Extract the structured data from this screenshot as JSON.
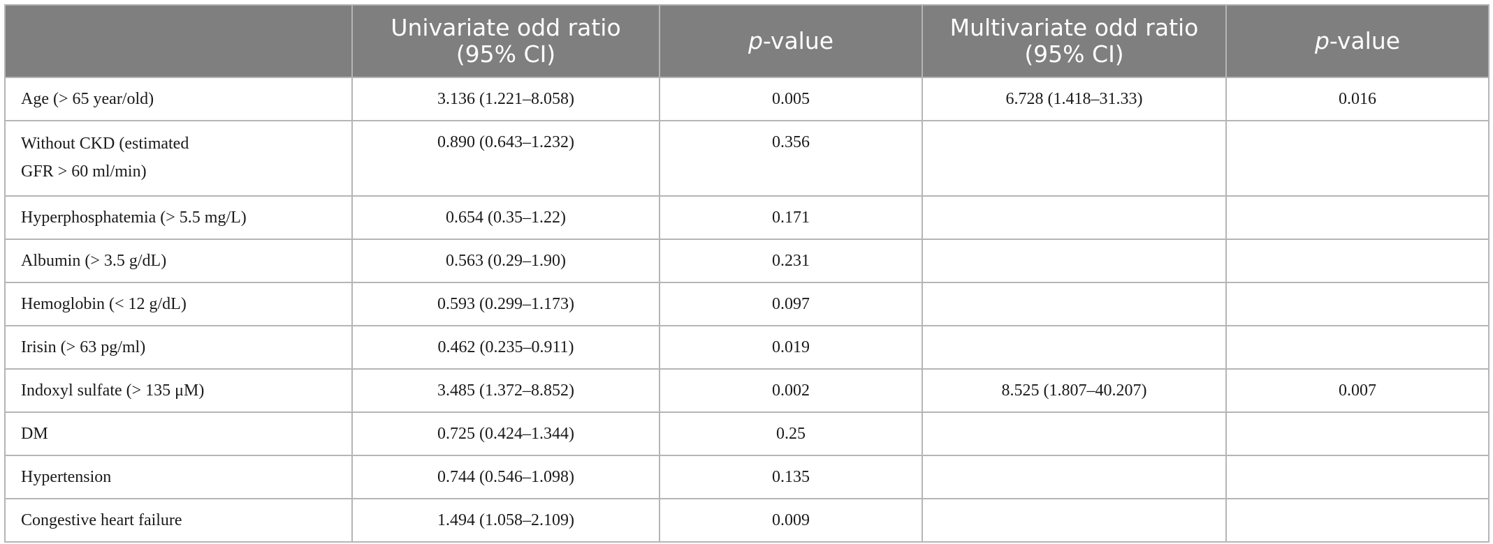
{
  "table": {
    "headers": {
      "col0": "",
      "col1_line1": "Univariate odd ratio",
      "col1_line2": "(95% CI)",
      "col2_italic": "p",
      "col2_rest": "-value",
      "col3_line1": "Multivariate odd ratio",
      "col3_line2": "(95% CI)",
      "col4_italic": "p",
      "col4_rest": "-value"
    },
    "rows": [
      {
        "label": "Age (> 65 year/old)",
        "label2": "",
        "uni": "3.136 (1.221–8.058)",
        "p1": "0.005",
        "multi": "6.728 (1.418–31.33)",
        "p2": "0.016"
      },
      {
        "label": "Without CKD (estimated",
        "label2": "GFR > 60 ml/min)",
        "uni": "0.890 (0.643–1.232)",
        "p1": "0.356",
        "multi": "",
        "p2": ""
      },
      {
        "label": "Hyperphosphatemia (> 5.5 mg/L)",
        "label2": "",
        "uni": "0.654 (0.35–1.22)",
        "p1": "0.171",
        "multi": "",
        "p2": ""
      },
      {
        "label": "Albumin (> 3.5 g/dL)",
        "label2": "",
        "uni": "0.563 (0.29–1.90)",
        "p1": "0.231",
        "multi": "",
        "p2": ""
      },
      {
        "label": "Hemoglobin (< 12 g/dL)",
        "label2": "",
        "uni": "0.593 (0.299–1.173)",
        "p1": "0.097",
        "multi": "",
        "p2": ""
      },
      {
        "label": "Irisin (> 63 pg/ml)",
        "label2": "",
        "uni": "0.462 (0.235–0.911)",
        "p1": "0.019",
        "multi": "",
        "p2": ""
      },
      {
        "label": "Indoxyl sulfate (> 135 μM)",
        "label2": "",
        "uni": "3.485 (1.372–8.852)",
        "p1": "0.002",
        "multi": "8.525 (1.807–40.207)",
        "p2": "0.007"
      },
      {
        "label": "DM",
        "label2": "",
        "uni": "0.725 (0.424–1.344)",
        "p1": "0.25",
        "multi": "",
        "p2": ""
      },
      {
        "label": "Hypertension",
        "label2": "",
        "uni": "0.744 (0.546–1.098)",
        "p1": "0.135",
        "multi": "",
        "p2": ""
      },
      {
        "label": "Congestive heart failure",
        "label2": "",
        "uni": "1.494 (1.058–2.109)",
        "p1": "0.009",
        "multi": "",
        "p2": ""
      }
    ]
  }
}
